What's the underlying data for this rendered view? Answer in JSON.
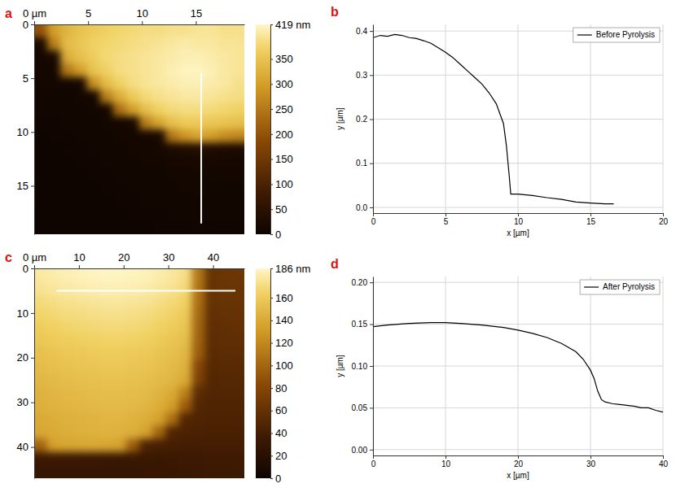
{
  "chart_data": [
    {
      "type": "heatmap",
      "panel_label": "a",
      "xlim": [
        0,
        19.5
      ],
      "ylim": [
        0,
        19.5
      ],
      "xticks": [
        {
          "value": 0,
          "label": "0 µm"
        },
        5,
        10,
        15
      ],
      "yticks": [
        0,
        5,
        10,
        15
      ],
      "colorbar": {
        "range": [
          0,
          419
        ],
        "ticks": [
          0,
          50,
          100,
          150,
          200,
          250,
          300,
          350,
          {
            "value": 419,
            "label": "419 nm"
          }
        ]
      },
      "profile_line": {
        "x": [
          15.5,
          15.5
        ],
        "y": [
          4.5,
          18.5
        ]
      },
      "cells": [
        [
          200,
          300,
          330,
          350,
          360,
          370,
          375,
          380,
          385,
          385,
          390,
          390,
          395,
          395,
          390,
          390
        ],
        [
          20,
          260,
          340,
          355,
          370,
          375,
          380,
          385,
          390,
          395,
          400,
          405,
          400,
          400,
          395,
          395
        ],
        [
          15,
          15,
          320,
          345,
          365,
          380,
          385,
          390,
          395,
          400,
          405,
          410,
          410,
          405,
          400,
          395
        ],
        [
          12,
          12,
          250,
          300,
          350,
          370,
          385,
          390,
          395,
          400,
          410,
          415,
          415,
          410,
          400,
          395
        ],
        [
          10,
          10,
          10,
          15,
          280,
          340,
          370,
          385,
          395,
          400,
          405,
          410,
          410,
          405,
          400,
          390
        ],
        [
          8,
          8,
          8,
          10,
          12,
          260,
          320,
          360,
          380,
          390,
          395,
          400,
          400,
          395,
          390,
          385
        ],
        [
          6,
          6,
          7,
          8,
          10,
          12,
          240,
          300,
          345,
          370,
          380,
          385,
          385,
          380,
          375,
          370
        ],
        [
          5,
          5,
          6,
          7,
          8,
          10,
          12,
          15,
          260,
          310,
          345,
          360,
          360,
          355,
          350,
          345
        ],
        [
          4,
          5,
          5,
          6,
          7,
          8,
          10,
          12,
          15,
          20,
          250,
          290,
          310,
          300,
          280,
          270
        ],
        [
          4,
          4,
          5,
          5,
          6,
          7,
          8,
          10,
          12,
          15,
          25,
          30,
          35,
          30,
          28,
          25
        ],
        [
          3,
          4,
          4,
          5,
          5,
          6,
          7,
          8,
          10,
          12,
          14,
          16,
          18,
          16,
          15,
          14
        ],
        [
          3,
          3,
          4,
          4,
          5,
          5,
          6,
          7,
          8,
          9,
          10,
          12,
          13,
          12,
          11,
          10
        ],
        [
          2,
          3,
          3,
          4,
          4,
          5,
          5,
          6,
          7,
          8,
          9,
          10,
          10,
          9,
          9,
          8
        ],
        [
          2,
          2,
          3,
          3,
          4,
          4,
          5,
          5,
          6,
          6,
          7,
          8,
          8,
          8,
          7,
          7
        ],
        [
          1,
          2,
          2,
          3,
          3,
          4,
          4,
          5,
          5,
          5,
          6,
          6,
          7,
          6,
          6,
          6
        ],
        [
          1,
          1,
          2,
          2,
          3,
          3,
          4,
          4,
          4,
          5,
          5,
          5,
          6,
          5,
          5,
          5
        ]
      ]
    },
    {
      "type": "line",
      "panel_label": "b",
      "x_label": "x [µm]",
      "y_label": "y [µm]",
      "xlim": [
        0,
        20
      ],
      "ylim": [
        -0.013,
        0.415
      ],
      "xticks": [
        0,
        5,
        10,
        15,
        20
      ],
      "yticks": [
        {
          "value": 0,
          "label": "0.0"
        },
        0.1,
        0.2,
        0.3,
        0.4
      ],
      "grid": true,
      "legend": "upper right",
      "x": [
        0,
        0.5,
        1,
        1.5,
        2,
        2.5,
        3,
        3.5,
        4,
        4.5,
        5,
        5.5,
        6,
        6.5,
        7,
        7.5,
        8,
        8.5,
        9,
        9.2,
        9.4,
        9.5,
        10,
        11,
        12,
        13,
        14,
        15,
        16,
        16.6
      ],
      "series": [
        {
          "name": "Before Pyrolysis",
          "color": "#000000",
          "values": [
            0.385,
            0.39,
            0.388,
            0.392,
            0.39,
            0.385,
            0.383,
            0.378,
            0.372,
            0.362,
            0.352,
            0.34,
            0.325,
            0.31,
            0.295,
            0.28,
            0.26,
            0.235,
            0.19,
            0.14,
            0.07,
            0.03,
            0.03,
            0.027,
            0.022,
            0.018,
            0.012,
            0.01,
            0.008,
            0.008
          ]
        }
      ]
    },
    {
      "type": "heatmap",
      "panel_label": "c",
      "xlim": [
        0,
        47
      ],
      "ylim": [
        0,
        47
      ],
      "xticks": [
        {
          "value": 0,
          "label": "0 µm"
        },
        10,
        20,
        30,
        40
      ],
      "yticks": [
        0,
        10,
        20,
        30,
        40
      ],
      "colorbar": {
        "range": [
          0,
          186
        ],
        "ticks": [
          0,
          20,
          40,
          60,
          80,
          100,
          120,
          140,
          160,
          {
            "value": 186,
            "label": "186 nm"
          }
        ]
      },
      "profile_line": {
        "x": [
          5,
          45
        ],
        "y": [
          5,
          5
        ]
      },
      "cells": [
        [
          178,
          180,
          182,
          183,
          184,
          185,
          185,
          184,
          183,
          180,
          177,
          172,
          110,
          62,
          64,
          65
        ],
        [
          175,
          177,
          179,
          180,
          181,
          182,
          182,
          181,
          180,
          177,
          174,
          169,
          108,
          61,
          63,
          63
        ],
        [
          170,
          172,
          174,
          175,
          176,
          177,
          177,
          176,
          175,
          172,
          169,
          164,
          105,
          60,
          62,
          62
        ],
        [
          166,
          168,
          170,
          171,
          172,
          173,
          173,
          172,
          171,
          168,
          165,
          160,
          102,
          58,
          60,
          60
        ],
        [
          162,
          164,
          166,
          167,
          168,
          169,
          169,
          168,
          167,
          164,
          161,
          156,
          100,
          57,
          58,
          59
        ],
        [
          158,
          160,
          162,
          163,
          164,
          165,
          165,
          164,
          163,
          160,
          157,
          152,
          98,
          56,
          57,
          57
        ],
        [
          154,
          156,
          158,
          159,
          160,
          161,
          161,
          160,
          159,
          156,
          153,
          148,
          95,
          54,
          55,
          55
        ],
        [
          151,
          153,
          155,
          156,
          157,
          158,
          158,
          157,
          156,
          153,
          150,
          144,
          80,
          52,
          53,
          53
        ],
        [
          148,
          150,
          152,
          153,
          154,
          155,
          155,
          154,
          153,
          150,
          147,
          140,
          75,
          50,
          51,
          51
        ],
        [
          145,
          147,
          149,
          150,
          151,
          152,
          152,
          151,
          150,
          146,
          140,
          115,
          55,
          49,
          49,
          49
        ],
        [
          143,
          145,
          147,
          148,
          149,
          150,
          150,
          149,
          147,
          142,
          132,
          95,
          50,
          47,
          47,
          47
        ],
        [
          140,
          142,
          144,
          145,
          146,
          147,
          147,
          145,
          142,
          135,
          105,
          50,
          47,
          45,
          45,
          45
        ],
        [
          138,
          140,
          142,
          143,
          144,
          145,
          144,
          142,
          135,
          100,
          48,
          45,
          44,
          43,
          43,
          43
        ],
        [
          100,
          135,
          137,
          138,
          139,
          138,
          135,
          95,
          45,
          42,
          41,
          40,
          40,
          40,
          40,
          40
        ],
        [
          35,
          35,
          34,
          34,
          34,
          33,
          33,
          33,
          33,
          33,
          34,
          35,
          36,
          37,
          37,
          37
        ],
        [
          30,
          30,
          30,
          30,
          30,
          30,
          30,
          30,
          31,
          31,
          32,
          33,
          34,
          35,
          35,
          35
        ]
      ]
    },
    {
      "type": "line",
      "panel_label": "d",
      "x_label": "x [µm]",
      "y_label": "y [µm]",
      "xlim": [
        0,
        40
      ],
      "ylim": [
        -0.007,
        0.207
      ],
      "xticks": [
        0,
        10,
        20,
        30,
        40
      ],
      "yticks": [
        {
          "value": 0,
          "label": "0.00"
        },
        0.05,
        {
          "value": 0.1,
          "label": "0.10"
        },
        0.15,
        {
          "value": 0.2,
          "label": "0.20"
        }
      ],
      "grid": true,
      "legend": "upper right",
      "x": [
        0,
        2,
        5,
        8,
        10,
        12,
        15,
        18,
        20,
        22,
        24,
        26,
        28,
        29,
        30,
        30.5,
        31,
        31.5,
        32,
        33,
        34,
        35,
        36,
        37,
        38,
        39,
        40
      ],
      "series": [
        {
          "name": "After Pyrolysis",
          "color": "#000000",
          "values": [
            0.147,
            0.149,
            0.151,
            0.152,
            0.152,
            0.151,
            0.149,
            0.146,
            0.143,
            0.139,
            0.134,
            0.127,
            0.117,
            0.108,
            0.095,
            0.085,
            0.07,
            0.06,
            0.057,
            0.055,
            0.054,
            0.053,
            0.052,
            0.05,
            0.05,
            0.047,
            0.045
          ]
        }
      ]
    }
  ]
}
